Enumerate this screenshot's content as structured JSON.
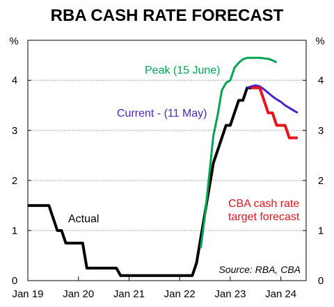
{
  "chart_data": {
    "type": "line",
    "title": "RBA CASH RATE FORECAST",
    "y_unit_left": "%",
    "y_unit_right": "%",
    "ylim": [
      0,
      4.8
    ],
    "yticks": [
      0,
      1,
      2,
      3,
      4
    ],
    "x_range": [
      "2019-01",
      "2024-07"
    ],
    "xticks": [
      {
        "label": "Jan 19",
        "date": "2019-01"
      },
      {
        "label": "Jan 20",
        "date": "2020-01"
      },
      {
        "label": "Jan 21",
        "date": "2021-01"
      },
      {
        "label": "Jan 22",
        "date": "2022-01"
      },
      {
        "label": "Jan 23",
        "date": "2023-01"
      },
      {
        "label": "Jan 24",
        "date": "2024-01"
      }
    ],
    "grid": "horizontal dotted",
    "source": "Source: RBA, CBA",
    "series": [
      {
        "name": "Actual",
        "color": "#000000",
        "width": 4,
        "points": [
          [
            "2019-01",
            1.5
          ],
          [
            "2019-06",
            1.5
          ],
          [
            "2019-07",
            1.25
          ],
          [
            "2019-08",
            1.0
          ],
          [
            "2019-09",
            1.0
          ],
          [
            "2019-10",
            0.75
          ],
          [
            "2020-02",
            0.75
          ],
          [
            "2020-03",
            0.25
          ],
          [
            "2020-10",
            0.25
          ],
          [
            "2020-11",
            0.1
          ],
          [
            "2022-04",
            0.1
          ],
          [
            "2022-05",
            0.35
          ],
          [
            "2022-06",
            0.85
          ],
          [
            "2022-07",
            1.35
          ],
          [
            "2022-08",
            1.85
          ],
          [
            "2022-09",
            2.35
          ],
          [
            "2022-10",
            2.6
          ],
          [
            "2022-11",
            2.85
          ],
          [
            "2022-12",
            3.1
          ],
          [
            "2023-01",
            3.1
          ],
          [
            "2023-02",
            3.35
          ],
          [
            "2023-03",
            3.6
          ],
          [
            "2023-04",
            3.6
          ],
          [
            "2023-05",
            3.85
          ],
          [
            "2023-06",
            3.85
          ]
        ]
      },
      {
        "name": "Peak (15 June)",
        "color": "#00a651",
        "width": 3,
        "points": [
          [
            "2022-06",
            0.65
          ],
          [
            "2022-07",
            1.3
          ],
          [
            "2022-08",
            2.1
          ],
          [
            "2022-09",
            2.9
          ],
          [
            "2022-10",
            3.3
          ],
          [
            "2022-11",
            3.8
          ],
          [
            "2022-12",
            3.95
          ],
          [
            "2023-01",
            4.0
          ],
          [
            "2023-02",
            4.25
          ],
          [
            "2023-03",
            4.35
          ],
          [
            "2023-04",
            4.42
          ],
          [
            "2023-05",
            4.45
          ],
          [
            "2023-06",
            4.45
          ],
          [
            "2023-07",
            4.45
          ],
          [
            "2023-08",
            4.45
          ],
          [
            "2023-09",
            4.44
          ],
          [
            "2023-10",
            4.43
          ],
          [
            "2023-11",
            4.4
          ],
          [
            "2023-12",
            4.36
          ]
        ]
      },
      {
        "name": "Current - (11 May)",
        "color": "#4b22c8",
        "width": 3,
        "points": [
          [
            "2023-05",
            3.85
          ],
          [
            "2023-06",
            3.88
          ],
          [
            "2023-07",
            3.9
          ],
          [
            "2023-08",
            3.88
          ],
          [
            "2023-09",
            3.82
          ],
          [
            "2023-10",
            3.75
          ],
          [
            "2023-11",
            3.68
          ],
          [
            "2023-12",
            3.62
          ],
          [
            "2024-01",
            3.57
          ],
          [
            "2024-02",
            3.5
          ],
          [
            "2024-03",
            3.45
          ],
          [
            "2024-04",
            3.4
          ],
          [
            "2024-05",
            3.35
          ]
        ]
      },
      {
        "name": "CBA cash rate target forecast",
        "color": "#e8131b",
        "width": 4,
        "points": [
          [
            "2023-06",
            3.85
          ],
          [
            "2023-08",
            3.85
          ],
          [
            "2023-09",
            3.6
          ],
          [
            "2023-10",
            3.35
          ],
          [
            "2023-11",
            3.35
          ],
          [
            "2023-12",
            3.1
          ],
          [
            "2024-01",
            3.1
          ],
          [
            "2024-02",
            3.1
          ],
          [
            "2024-03",
            2.85
          ],
          [
            "2024-05",
            2.85
          ]
        ]
      }
    ],
    "labels": {
      "actual": "Actual",
      "peak": "Peak (15 June)",
      "current": "Current - (11 May)",
      "cba_line1": "CBA cash rate",
      "cba_line2": "target forecast"
    }
  }
}
